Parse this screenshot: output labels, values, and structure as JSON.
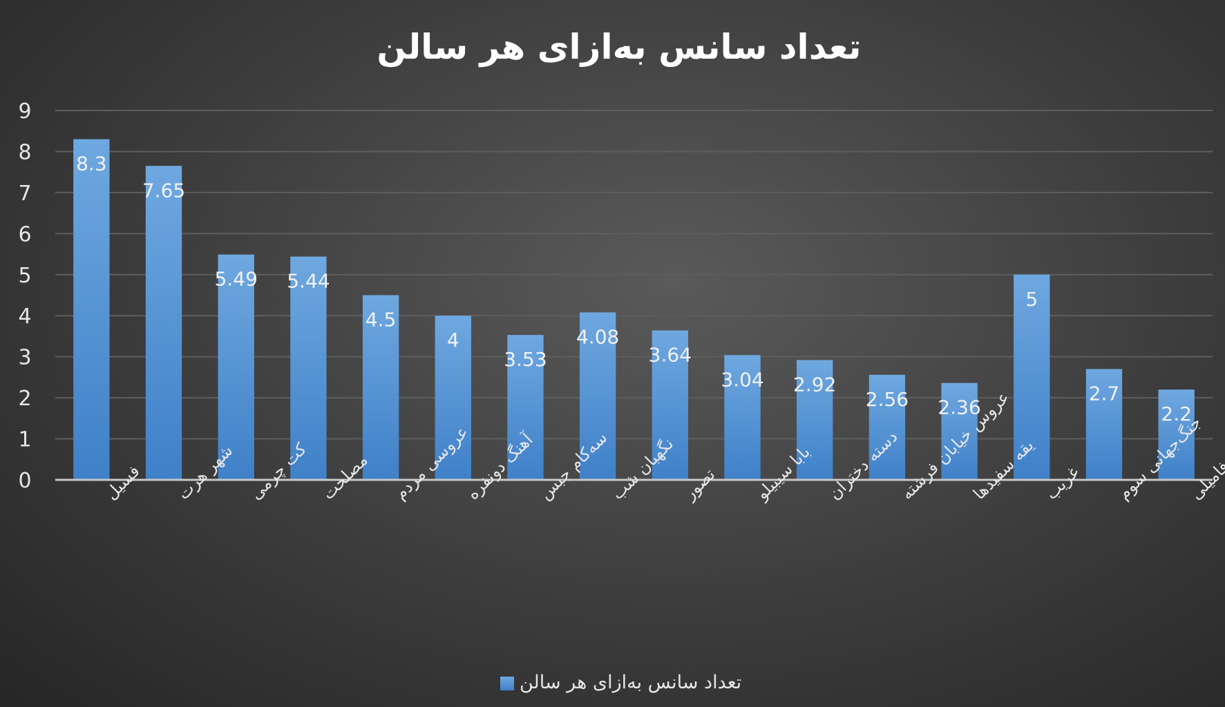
{
  "chart_data": {
    "type": "bar",
    "title": "تعداد سانس به‌ازای هر سالن",
    "xlabel": "",
    "ylabel": "",
    "ylim": [
      0,
      9
    ],
    "yticks": [
      "0",
      "1",
      "2",
      "3",
      "4",
      "5",
      "6",
      "7",
      "8",
      "9"
    ],
    "grid": true,
    "legend_position": "bottom",
    "categories": [
      "فسیل",
      "شهر هرت",
      "کت چرمی",
      "مصلحت",
      "عروسی مردم",
      "آهنگ دونفره",
      "سه‌کام جبس",
      "نگهبان شب",
      "تصور",
      "بابا سیبیلو",
      "دسته دختران",
      "عروس خیابان فرشته",
      "یقه سفیدها",
      "غریب",
      "جنگ‌جهانی سوم",
      "ارثیه فامیلی"
    ],
    "series": [
      {
        "name": "تعداد سانس به‌ازای هر سالن",
        "values": [
          8.3,
          7.65,
          5.49,
          5.44,
          4.5,
          4,
          3.53,
          4.08,
          3.64,
          3.04,
          2.92,
          2.56,
          2.36,
          5,
          2.7,
          2.2
        ],
        "labels": [
          "8.3",
          "7.65",
          "5.49",
          "5.44",
          "4.5",
          "4",
          "3.53",
          "4.08",
          "3.64",
          "3.04",
          "2.92",
          "2.56",
          "2.36",
          "5",
          "2.7",
          "2.2"
        ]
      }
    ]
  },
  "colors": {
    "bar_top": "#6fa8e0",
    "bar_bottom": "#3f80c8",
    "grid": "#5e5e5e",
    "axis": "#c8c8c8"
  }
}
